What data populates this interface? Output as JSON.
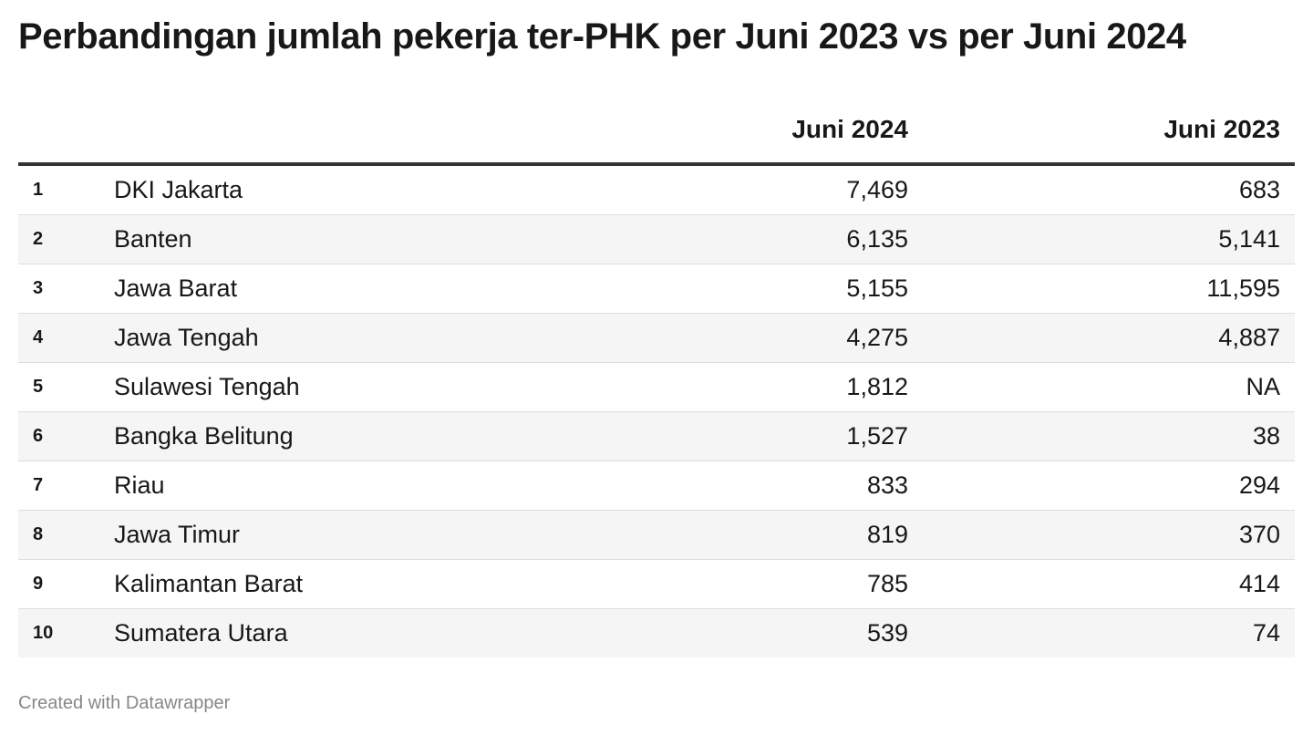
{
  "chart_data": {
    "type": "table",
    "title": "Perbandingan jumlah pekerja ter-PHK per Juni 2023 vs per Juni 2024",
    "columns": [
      "",
      "",
      "Juni 2024",
      "Juni 2023"
    ],
    "rows": [
      {
        "rank": "1",
        "province": "DKI Jakarta",
        "juni_2024": "7,469",
        "juni_2023": "683"
      },
      {
        "rank": "2",
        "province": "Banten",
        "juni_2024": "6,135",
        "juni_2023": "5,141"
      },
      {
        "rank": "3",
        "province": "Jawa Barat",
        "juni_2024": "5,155",
        "juni_2023": "11,595"
      },
      {
        "rank": "4",
        "province": "Jawa Tengah",
        "juni_2024": "4,275",
        "juni_2023": "4,887"
      },
      {
        "rank": "5",
        "province": "Sulawesi Tengah",
        "juni_2024": "1,812",
        "juni_2023": "NA"
      },
      {
        "rank": "6",
        "province": "Bangka Belitung",
        "juni_2024": "1,527",
        "juni_2023": "38"
      },
      {
        "rank": "7",
        "province": "Riau",
        "juni_2024": "833",
        "juni_2023": "294"
      },
      {
        "rank": "8",
        "province": "Jawa Timur",
        "juni_2024": "819",
        "juni_2023": "370"
      },
      {
        "rank": "9",
        "province": "Kalimantan Barat",
        "juni_2024": "785",
        "juni_2023": "414"
      },
      {
        "rank": "10",
        "province": "Sumatera Utara",
        "juni_2024": "539",
        "juni_2023": "74"
      }
    ],
    "footer": "Created with Datawrapper",
    "colors": {
      "text": "#181818",
      "row_stripe": "#f5f5f5",
      "header_rule": "#333333",
      "row_rule": "#dddddd",
      "footer_text": "#888888"
    }
  }
}
